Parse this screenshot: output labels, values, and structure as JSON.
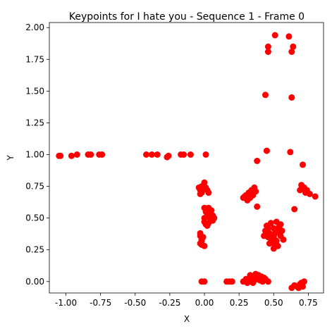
{
  "chart_data": {
    "type": "scatter",
    "title": "Keypoints for I hate you - Sequence 1 - Frame 0",
    "xlabel": "X",
    "ylabel": "Y",
    "xlim": [
      -1.12,
      0.86
    ],
    "ylim": [
      -0.09,
      2.04
    ],
    "xticks": [
      "-1.00",
      "-0.75",
      "-0.50",
      "-0.25",
      "0.00",
      "0.25",
      "0.50",
      "0.75"
    ],
    "yticks": [
      "0.00",
      "0.25",
      "0.50",
      "0.75",
      "1.00",
      "1.25",
      "1.50",
      "1.75",
      "2.00"
    ],
    "grid": false,
    "marker_color": "#ff0000",
    "series": [
      {
        "points": [
          [
            -1.05,
            0.99
          ],
          [
            -1.04,
            0.99
          ],
          [
            -0.96,
            0.99
          ],
          [
            -0.92,
            1.0
          ],
          [
            -0.84,
            1.0
          ],
          [
            -0.82,
            1.0
          ],
          [
            -0.76,
            1.0
          ],
          [
            -0.74,
            1.0
          ],
          [
            -0.42,
            1.0
          ],
          [
            -0.38,
            1.0
          ],
          [
            -0.34,
            1.0
          ],
          [
            -0.27,
            0.98
          ],
          [
            -0.26,
            0.99
          ],
          [
            -0.17,
            1.0
          ],
          [
            -0.15,
            1.0
          ],
          [
            -0.1,
            1.0
          ],
          [
            0.01,
            1.0
          ],
          [
            0.46,
            1.85
          ],
          [
            0.46,
            1.81
          ],
          [
            0.51,
            1.94
          ],
          [
            0.61,
            1.93
          ],
          [
            0.64,
            1.85
          ],
          [
            0.63,
            1.81
          ],
          [
            0.44,
            1.47
          ],
          [
            0.63,
            1.45
          ],
          [
            0.45,
            1.03
          ],
          [
            0.62,
            1.02
          ],
          [
            0.38,
            0.95
          ],
          [
            0.71,
            0.92
          ],
          [
            -0.04,
            0.74
          ],
          [
            -0.03,
            0.72
          ],
          [
            -0.02,
            0.7
          ],
          [
            -0.01,
            0.73
          ],
          [
            0.0,
            0.78
          ],
          [
            0.01,
            0.74
          ],
          [
            0.02,
            0.72
          ],
          [
            0.03,
            0.7
          ],
          [
            -0.03,
            0.69
          ],
          [
            -0.02,
            0.75
          ],
          [
            0.0,
            0.58
          ],
          [
            0.02,
            0.56
          ],
          [
            0.04,
            0.54
          ],
          [
            0.06,
            0.52
          ],
          [
            0.05,
            0.48
          ],
          [
            0.03,
            0.46
          ],
          [
            0.01,
            0.45
          ],
          [
            0.0,
            0.5
          ],
          [
            0.02,
            0.52
          ],
          [
            0.04,
            0.5
          ],
          [
            0.06,
            0.48
          ],
          [
            0.01,
            0.55
          ],
          [
            0.03,
            0.58
          ],
          [
            0.05,
            0.56
          ],
          [
            0.07,
            0.5
          ],
          [
            0.0,
            0.47
          ],
          [
            0.02,
            0.44
          ],
          [
            -0.03,
            0.36
          ],
          [
            -0.02,
            0.33
          ],
          [
            -0.03,
            0.3
          ],
          [
            -0.02,
            0.29
          ],
          [
            0.0,
            0.28
          ],
          [
            -0.01,
            0.35
          ],
          [
            -0.03,
            0.38
          ],
          [
            -0.02,
            0.32
          ],
          [
            0.28,
            0.66
          ],
          [
            0.3,
            0.68
          ],
          [
            0.32,
            0.7
          ],
          [
            0.34,
            0.72
          ],
          [
            0.36,
            0.74
          ],
          [
            0.33,
            0.66
          ],
          [
            0.31,
            0.64
          ],
          [
            0.35,
            0.68
          ],
          [
            0.37,
            0.71
          ],
          [
            0.29,
            0.67
          ],
          [
            0.38,
            0.59
          ],
          [
            0.7,
            0.76
          ],
          [
            0.72,
            0.74
          ],
          [
            0.69,
            0.72
          ],
          [
            0.73,
            0.7
          ],
          [
            0.76,
            0.69
          ],
          [
            0.8,
            0.67
          ],
          [
            0.74,
            0.72
          ],
          [
            0.65,
            0.57
          ],
          [
            0.44,
            0.4
          ],
          [
            0.46,
            0.35
          ],
          [
            0.48,
            0.31
          ],
          [
            0.5,
            0.3
          ],
          [
            0.52,
            0.32
          ],
          [
            0.55,
            0.36
          ],
          [
            0.56,
            0.4
          ],
          [
            0.55,
            0.45
          ],
          [
            0.52,
            0.47
          ],
          [
            0.48,
            0.46
          ],
          [
            0.45,
            0.44
          ],
          [
            0.47,
            0.38
          ],
          [
            0.5,
            0.35
          ],
          [
            0.53,
            0.39
          ],
          [
            0.5,
            0.42
          ],
          [
            0.46,
            0.42
          ],
          [
            0.54,
            0.43
          ],
          [
            0.49,
            0.33
          ],
          [
            0.51,
            0.38
          ],
          [
            0.47,
            0.3
          ],
          [
            0.53,
            0.28
          ],
          [
            0.5,
            0.26
          ],
          [
            0.43,
            0.36
          ],
          [
            0.57,
            0.33
          ],
          [
            -0.02,
            0.0
          ],
          [
            0.0,
            0.0
          ],
          [
            0.16,
            0.0
          ],
          [
            0.18,
            0.0
          ],
          [
            0.2,
            0.0
          ],
          [
            0.28,
            0.0
          ],
          [
            0.3,
            0.02
          ],
          [
            0.32,
            0.01
          ],
          [
            0.34,
            0.03
          ],
          [
            0.36,
            0.04
          ],
          [
            0.38,
            0.02
          ],
          [
            0.4,
            0.01
          ],
          [
            0.42,
            0.0
          ],
          [
            0.44,
            0.02
          ],
          [
            0.46,
            0.0
          ],
          [
            0.35,
            -0.01
          ],
          [
            0.37,
            0.06
          ],
          [
            0.33,
            0.05
          ],
          [
            0.31,
            -0.01
          ],
          [
            0.39,
            0.05
          ],
          [
            0.41,
            0.04
          ],
          [
            0.43,
            0.03
          ],
          [
            0.36,
            0.01
          ],
          [
            0.63,
            -0.05
          ],
          [
            0.65,
            -0.03
          ],
          [
            0.67,
            -0.04
          ],
          [
            0.69,
            -0.02
          ],
          [
            0.71,
            -0.04
          ],
          [
            0.7,
            -0.01
          ],
          [
            0.72,
            0.0
          ],
          [
            0.68,
            -0.05
          ]
        ]
      }
    ]
  }
}
